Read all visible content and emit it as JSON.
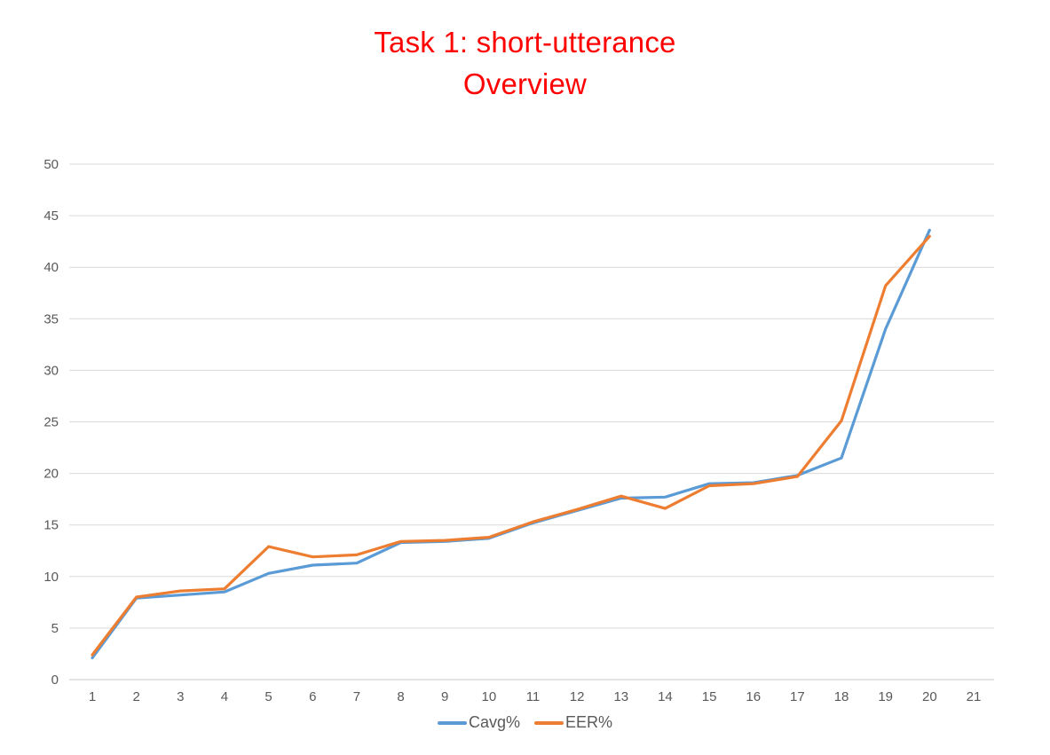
{
  "chart_data": {
    "type": "line",
    "title_lines": [
      "Task 1: short-utterance",
      "Overview"
    ],
    "title_color": "#ff0000",
    "x_ticks": [
      1,
      2,
      3,
      4,
      5,
      6,
      7,
      8,
      9,
      10,
      11,
      12,
      13,
      14,
      15,
      16,
      17,
      18,
      19,
      20,
      21
    ],
    "x": [
      1,
      2,
      3,
      4,
      5,
      6,
      7,
      8,
      9,
      10,
      11,
      12,
      13,
      14,
      15,
      16,
      17,
      18,
      19,
      20
    ],
    "series": [
      {
        "name": "Cavg%",
        "color": "#5b9bd5",
        "values": [
          2.1,
          7.9,
          8.2,
          8.5,
          10.3,
          11.1,
          11.3,
          13.3,
          13.4,
          13.7,
          15.2,
          16.4,
          17.6,
          17.7,
          19.0,
          19.1,
          19.8,
          21.5,
          34.0,
          43.6
        ]
      },
      {
        "name": "EER%",
        "color": "#ed7d31",
        "values": [
          2.4,
          8.0,
          8.6,
          8.8,
          12.9,
          11.9,
          12.1,
          13.4,
          13.5,
          13.8,
          15.3,
          16.5,
          17.8,
          16.6,
          18.8,
          19.0,
          19.7,
          25.1,
          38.2,
          43.0
        ]
      }
    ],
    "ylim": [
      0,
      50
    ],
    "y_ticks": [
      0,
      5,
      10,
      15,
      20,
      25,
      30,
      35,
      40,
      45,
      50
    ],
    "grid": "horizontal",
    "gridline_color": "#d9d9d9",
    "axis_line_color": "#c9c9c9",
    "axis_label_color": "#595959",
    "legend_position": "bottom",
    "ylabel": "",
    "xlabel": ""
  }
}
